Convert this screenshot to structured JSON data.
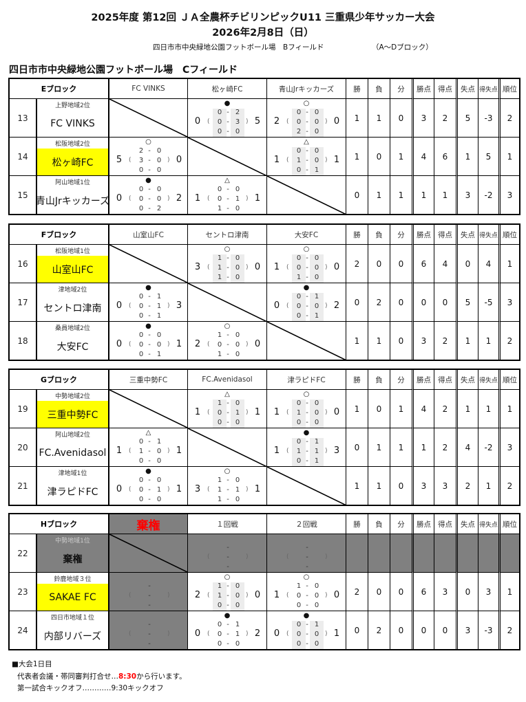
{
  "header": {
    "title": "2025年度 第12回 ＪＡ全農杯チビリンピックU11 三重県少年サッカー大会",
    "date": "2026年2月8日（日）",
    "other_venue": "四日市市中央緑地公園フットボール場　Bフィールド",
    "other_blocks": "（A～Dブロック）",
    "field_title": "四日市市中央緑地公園フットボール場　Cフィールド"
  },
  "stat_headers": [
    "勝",
    "負",
    "分",
    "勝点",
    "得点",
    "失点",
    "得失点",
    "順位"
  ],
  "colors": {
    "highlight": "#ffff00",
    "forfeit_bg": "#808080",
    "forfeit_text": "#ff0000"
  },
  "marks": {
    "win": "○",
    "loss": "●",
    "draw": "△"
  },
  "blocks": [
    {
      "name": "Eブロック",
      "columns": [
        "FC VINKS",
        "松ヶ崎FC",
        "青山Jrキッカーズ"
      ],
      "rows": [
        {
          "no": "13",
          "region": "上野地域2位",
          "team": "FC VINKS",
          "highlight": false,
          "cells": [
            null,
            {
              "mark": "●",
              "for": "0",
              "against": "5",
              "halves": [
                [
                  "0",
                  "2"
                ],
                [
                  "0",
                  "3"
                ],
                [
                  "0",
                  "0"
                ]
              ],
              "shaded": true
            },
            {
              "mark": "○",
              "for": "2",
              "against": "0",
              "halves": [
                [
                  "0",
                  "0"
                ],
                [
                  "0",
                  "0"
                ],
                [
                  "2",
                  "0"
                ]
              ],
              "shaded": true
            }
          ],
          "stats": [
            "1",
            "1",
            "0",
            "3",
            "2",
            "5",
            "-3",
            "2"
          ]
        },
        {
          "no": "14",
          "region": "松阪地域2位",
          "team": "松ヶ崎FC",
          "highlight": true,
          "cells": [
            {
              "mark": "○",
              "for": "5",
              "against": "0",
              "halves": [
                [
                  "2",
                  "0"
                ],
                [
                  "3",
                  "0"
                ],
                [
                  "0",
                  "0"
                ]
              ],
              "shaded": false
            },
            null,
            {
              "mark": "△",
              "for": "1",
              "against": "1",
              "halves": [
                [
                  "0",
                  "0"
                ],
                [
                  "1",
                  "0"
                ],
                [
                  "0",
                  "1"
                ]
              ],
              "shaded": true
            }
          ],
          "stats": [
            "1",
            "0",
            "1",
            "4",
            "6",
            "1",
            "5",
            "1"
          ]
        },
        {
          "no": "15",
          "region": "阿山地域1位",
          "team": "青山Jrキッカーズ",
          "highlight": false,
          "cells": [
            {
              "mark": "●",
              "for": "0",
              "against": "2",
              "halves": [
                [
                  "0",
                  "0"
                ],
                [
                  "0",
                  "0"
                ],
                [
                  "0",
                  "2"
                ]
              ],
              "shaded": false
            },
            {
              "mark": "△",
              "for": "1",
              "against": "1",
              "halves": [
                [
                  "0",
                  "0"
                ],
                [
                  "0",
                  "1"
                ],
                [
                  "1",
                  "0"
                ]
              ],
              "shaded": false
            },
            null
          ],
          "stats": [
            "0",
            "1",
            "1",
            "1",
            "1",
            "3",
            "-2",
            "3"
          ]
        }
      ]
    },
    {
      "name": "Fブロック",
      "columns": [
        "山室山FC",
        "セントロ津南",
        "大安FC"
      ],
      "rows": [
        {
          "no": "16",
          "region": "松阪地域1位",
          "team": "山室山FC",
          "highlight": true,
          "cells": [
            null,
            {
              "mark": "○",
              "for": "3",
              "against": "0",
              "halves": [
                [
                  "1",
                  "0"
                ],
                [
                  "1",
                  "0"
                ],
                [
                  "1",
                  "0"
                ]
              ],
              "shaded": true
            },
            {
              "mark": "○",
              "for": "1",
              "against": "0",
              "halves": [
                [
                  "0",
                  "0"
                ],
                [
                  "0",
                  "0"
                ],
                [
                  "1",
                  "0"
                ]
              ],
              "shaded": true
            }
          ],
          "stats": [
            "2",
            "0",
            "0",
            "6",
            "4",
            "0",
            "4",
            "1"
          ]
        },
        {
          "no": "17",
          "region": "津地域2位",
          "team": "セントロ津南",
          "highlight": false,
          "cells": [
            {
              "mark": "●",
              "for": "0",
              "against": "3",
              "halves": [
                [
                  "0",
                  "1"
                ],
                [
                  "0",
                  "1"
                ],
                [
                  "0",
                  "1"
                ]
              ],
              "shaded": false
            },
            null,
            {
              "mark": "●",
              "for": "0",
              "against": "2",
              "halves": [
                [
                  "0",
                  "1"
                ],
                [
                  "0",
                  "0"
                ],
                [
                  "0",
                  "1"
                ]
              ],
              "shaded": true
            }
          ],
          "stats": [
            "0",
            "2",
            "0",
            "0",
            "0",
            "5",
            "-5",
            "3"
          ]
        },
        {
          "no": "18",
          "region": "桑員地域2位",
          "team": "大安FC",
          "highlight": false,
          "cells": [
            {
              "mark": "●",
              "for": "0",
              "against": "1",
              "halves": [
                [
                  "0",
                  "0"
                ],
                [
                  "0",
                  "0"
                ],
                [
                  "0",
                  "1"
                ]
              ],
              "shaded": false
            },
            {
              "mark": "○",
              "for": "2",
              "against": "0",
              "halves": [
                [
                  "1",
                  "0"
                ],
                [
                  "0",
                  "0"
                ],
                [
                  "1",
                  "0"
                ]
              ],
              "shaded": false
            },
            null
          ],
          "stats": [
            "1",
            "1",
            "0",
            "3",
            "2",
            "1",
            "1",
            "2"
          ]
        }
      ]
    },
    {
      "name": "Gブロック",
      "columns": [
        "三重中勢FC",
        "FC.Avenidasol",
        "津ラピドFC"
      ],
      "rows": [
        {
          "no": "19",
          "region": "中勢地域2位",
          "team": "三重中勢FC",
          "highlight": true,
          "cells": [
            null,
            {
              "mark": "△",
              "for": "1",
              "against": "1",
              "halves": [
                [
                  "1",
                  "0"
                ],
                [
                  "0",
                  "1"
                ],
                [
                  "0",
                  "0"
                ]
              ],
              "shaded": true
            },
            {
              "mark": "○",
              "for": "1",
              "against": "0",
              "halves": [
                [
                  "0",
                  "0"
                ],
                [
                  "1",
                  "0"
                ],
                [
                  "0",
                  "0"
                ]
              ],
              "shaded": true
            }
          ],
          "stats": [
            "1",
            "0",
            "1",
            "4",
            "2",
            "1",
            "1",
            "1"
          ]
        },
        {
          "no": "20",
          "region": "阿山地域2位",
          "team": "FC.Avenidasol",
          "highlight": false,
          "cells": [
            {
              "mark": "△",
              "for": "1",
              "against": "1",
              "halves": [
                [
                  "0",
                  "1"
                ],
                [
                  "1",
                  "0"
                ],
                [
                  "0",
                  "0"
                ]
              ],
              "shaded": false
            },
            null,
            {
              "mark": "●",
              "for": "1",
              "against": "3",
              "halves": [
                [
                  "0",
                  "1"
                ],
                [
                  "1",
                  "1"
                ],
                [
                  "0",
                  "1"
                ]
              ],
              "shaded": true
            }
          ],
          "stats": [
            "0",
            "1",
            "1",
            "1",
            "2",
            "4",
            "-2",
            "3"
          ]
        },
        {
          "no": "21",
          "region": "津地域1位",
          "team": "津ラピドFC",
          "highlight": false,
          "cells": [
            {
              "mark": "●",
              "for": "0",
              "against": "1",
              "halves": [
                [
                  "0",
                  "0"
                ],
                [
                  "0",
                  "1"
                ],
                [
                  "0",
                  "0"
                ]
              ],
              "shaded": false
            },
            {
              "mark": "○",
              "for": "3",
              "against": "1",
              "halves": [
                [
                  "1",
                  "0"
                ],
                [
                  "1",
                  "1"
                ],
                [
                  "1",
                  "0"
                ]
              ],
              "shaded": false
            },
            null
          ],
          "stats": [
            "1",
            "1",
            "0",
            "3",
            "3",
            "2",
            "1",
            "2"
          ]
        }
      ]
    },
    {
      "name": "Hブロック",
      "columns": [
        "棄権",
        "１回戦",
        "２回戦"
      ],
      "forfeit_column": 0,
      "rows": [
        {
          "no": "22",
          "region": "中勢地域1位",
          "team": "棄権",
          "highlight": false,
          "forfeit": true,
          "cells": [
            null,
            {
              "mark": "",
              "for": "",
              "against": "",
              "halves": [
                [
                  "",
                  ""
                ],
                [
                  "",
                  ""
                ],
                [
                  "",
                  ""
                ]
              ],
              "shaded": false,
              "empty": true
            },
            {
              "mark": "",
              "for": "",
              "against": "",
              "halves": [
                [
                  "",
                  ""
                ],
                [
                  "",
                  ""
                ],
                [
                  "",
                  ""
                ]
              ],
              "shaded": false,
              "empty": true
            }
          ],
          "stats": [
            "",
            "",
            "",
            "",
            "",
            "",
            "",
            ""
          ]
        },
        {
          "no": "23",
          "region": "鈴鹿地域３位",
          "team": "SAKAE FC",
          "highlight": true,
          "cells": [
            {
              "mark": "",
              "for": "",
              "against": "",
              "halves": [
                [
                  "",
                  ""
                ],
                [
                  "",
                  ""
                ],
                [
                  "",
                  ""
                ]
              ],
              "shaded": false,
              "empty": true
            },
            {
              "mark": "○",
              "for": "2",
              "against": "0",
              "halves": [
                [
                  "1",
                  "0"
                ],
                [
                  "1",
                  "0"
                ],
                [
                  "0",
                  "0"
                ]
              ],
              "shaded": true
            },
            {
              "mark": "○",
              "for": "1",
              "against": "0",
              "halves": [
                [
                  "1",
                  "0"
                ],
                [
                  "0",
                  "0"
                ],
                [
                  "0",
                  "0"
                ]
              ],
              "shaded": false
            }
          ],
          "stats": [
            "2",
            "0",
            "0",
            "6",
            "3",
            "0",
            "3",
            "1"
          ]
        },
        {
          "no": "24",
          "region": "四日市地域１位",
          "team": "内部リバーズ",
          "highlight": false,
          "cells": [
            {
              "mark": "",
              "for": "",
              "against": "",
              "halves": [
                [
                  "",
                  ""
                ],
                [
                  "",
                  ""
                ],
                [
                  "",
                  ""
                ]
              ],
              "shaded": false,
              "empty": true
            },
            {
              "mark": "●",
              "for": "0",
              "against": "2",
              "halves": [
                [
                  "0",
                  "1"
                ],
                [
                  "0",
                  "1"
                ],
                [
                  "0",
                  "0"
                ]
              ],
              "shaded": false
            },
            {
              "mark": "●",
              "for": "0",
              "against": "1",
              "halves": [
                [
                  "0",
                  "1"
                ],
                [
                  "0",
                  "0"
                ],
                [
                  "0",
                  "0"
                ]
              ],
              "shaded": true
            }
          ],
          "stats": [
            "0",
            "2",
            "0",
            "0",
            "0",
            "3",
            "-3",
            "2"
          ]
        }
      ]
    }
  ],
  "notes": {
    "heading": "■大会1日目",
    "line1_pre": "代表者会議・帯同審判打合せ…",
    "line1_time": "8:30",
    "line1_post": "から行います。",
    "line2": "第一試合キックオフ…………9:30キックオフ"
  }
}
